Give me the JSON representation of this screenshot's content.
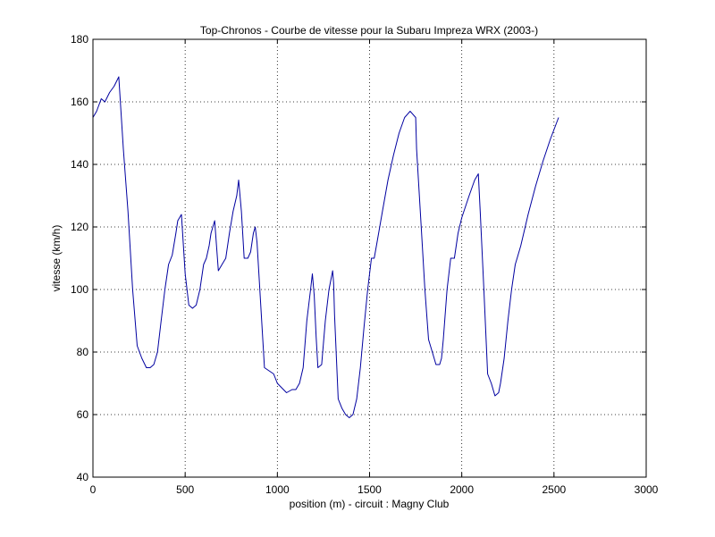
{
  "chart_data": {
    "type": "line",
    "title": "Top-Chronos - Courbe de vitesse pour la Subaru Impreza WRX (2003-)",
    "xlabel": "position (m) - circuit : Magny Club",
    "ylabel": "vitesse (km/h)",
    "xlim": [
      0,
      3000
    ],
    "ylim": [
      40,
      180
    ],
    "xticks": [
      0,
      500,
      1000,
      1500,
      2000,
      2500,
      3000
    ],
    "yticks": [
      40,
      60,
      80,
      100,
      120,
      140,
      160,
      180
    ],
    "grid": true,
    "line_color": "#0000a0",
    "series": [
      {
        "x": [
          0,
          20,
          45,
          65,
          90,
          115,
          140,
          165,
          190,
          215,
          240,
          265,
          290,
          310,
          330,
          350,
          370,
          390,
          410,
          430,
          450,
          460,
          480,
          500,
          520,
          540,
          560,
          580,
          600,
          615,
          630,
          640,
          660,
          680,
          700,
          720,
          740,
          760,
          780,
          790,
          805,
          820,
          840,
          855,
          870,
          880,
          890,
          930,
          980,
          1000,
          1050,
          1080,
          1100,
          1120,
          1140,
          1160,
          1180,
          1190,
          1200,
          1210,
          1220,
          1240,
          1260,
          1280,
          1300,
          1305,
          1310,
          1330,
          1350,
          1370,
          1390,
          1410,
          1430,
          1450,
          1470,
          1490,
          1510,
          1525,
          1540,
          1570,
          1600,
          1630,
          1660,
          1690,
          1720,
          1750,
          1755,
          1780,
          1800,
          1820,
          1840,
          1860,
          1880,
          1890,
          1900,
          1920,
          1940,
          1960,
          1980,
          2000,
          2040,
          2070,
          2090,
          2100,
          2120,
          2140,
          2160,
          2180,
          2200,
          2210,
          2230,
          2250,
          2270,
          2290,
          2300,
          2320,
          2360,
          2400,
          2440,
          2480,
          2525
        ],
        "y": [
          155,
          157,
          161,
          160,
          163,
          165,
          168,
          145,
          125,
          100,
          82,
          78,
          75,
          75,
          76,
          80,
          90,
          100,
          108,
          111,
          118,
          122,
          124,
          105,
          95,
          94,
          95,
          100,
          108,
          110,
          114,
          118,
          122,
          106,
          108,
          110,
          118,
          125,
          130,
          135,
          125,
          110,
          110,
          112,
          118,
          120,
          115,
          75,
          73,
          70,
          67,
          68,
          68,
          70,
          75,
          90,
          100,
          105,
          98,
          85,
          75,
          76,
          90,
          100,
          106,
          102,
          92,
          65,
          62,
          60,
          59,
          60,
          65,
          75,
          88,
          100,
          110,
          110,
          115,
          125,
          135,
          143,
          150,
          155,
          157,
          155,
          145,
          120,
          100,
          84,
          80,
          76,
          76,
          78,
          84,
          100,
          110,
          110,
          118,
          123,
          130,
          135,
          137,
          125,
          100,
          73,
          70,
          66,
          67,
          70,
          78,
          90,
          100,
          108,
          110,
          114,
          124,
          133,
          141,
          148,
          155
        ]
      }
    ]
  }
}
